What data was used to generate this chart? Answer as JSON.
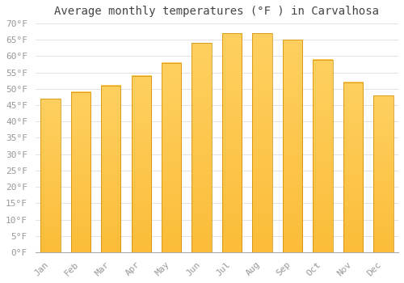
{
  "title": "Average monthly temperatures (°F ) in Carvalhosa",
  "months": [
    "Jan",
    "Feb",
    "Mar",
    "Apr",
    "May",
    "Jun",
    "Jul",
    "Aug",
    "Sep",
    "Oct",
    "Nov",
    "Dec"
  ],
  "values": [
    47,
    49,
    51,
    54,
    58,
    64,
    67,
    67,
    65,
    59,
    52,
    48
  ],
  "bar_color": "#FFA500",
  "bar_edge_color": "#CC7700",
  "background_color": "#FFFFFF",
  "grid_color": "#DDDDDD",
  "tick_label_color": "#999999",
  "title_color": "#444444",
  "ylim": [
    0,
    70
  ],
  "ytick_step": 5,
  "title_fontsize": 10,
  "tick_fontsize": 8,
  "font_family": "monospace"
}
